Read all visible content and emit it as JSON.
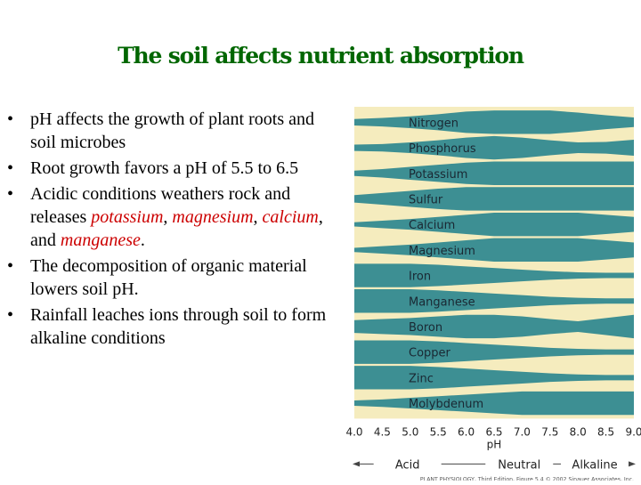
{
  "title": "The soil affects nutrient absorption",
  "bullets": [
    {
      "text": "pH affects the growth of plant roots and soil microbes"
    },
    {
      "text": "Root growth favors a pH of 5.5 to 6.5"
    },
    {
      "pre": "Acidic conditions weathers rock and releases ",
      "r1": "potassium",
      "s1": ", ",
      "r2": "magnesium",
      "s2": ", ",
      "r3": "calcium",
      "s3": ", and ",
      "r4": "manganese",
      "post": "."
    },
    {
      "text": "The decomposition of organic material lowers soil pH."
    },
    {
      "text": "Rainfall leaches ions through soil to form alkaline conditions"
    }
  ],
  "bullet_glyph": "•",
  "chart_data": {
    "type": "area",
    "xlabel": "pH",
    "x_ticks": [
      "4.0",
      "4.5",
      "5.0",
      "5.5",
      "6.0",
      "6.5",
      "7.0",
      "7.5",
      "8.0",
      "8.5",
      "9.0"
    ],
    "xlim": [
      4.0,
      9.0
    ],
    "scale_labels": {
      "acid": "Acid",
      "neutral": "Neutral",
      "alkaline": "Alkaline"
    },
    "credit": "PLANT PHYSIOLOGY, Third Edition, Figure 5.4 © 2002 Sinauer Associates, Inc.",
    "colors": {
      "band": "#3d8f93",
      "background": "#f5ecbe",
      "text": "#1a2833"
    },
    "nutrients": [
      {
        "name": "Nitrogen",
        "availability": [
          0.2,
          0.3,
          0.45,
          0.65,
          0.9,
          1.0,
          1.0,
          1.0,
          0.8,
          0.55,
          0.35
        ]
      },
      {
        "name": "Phosphorus",
        "availability": [
          0.2,
          0.25,
          0.4,
          0.6,
          0.85,
          1.0,
          0.85,
          0.6,
          0.4,
          0.45,
          0.65
        ]
      },
      {
        "name": "Potassium",
        "availability": [
          0.15,
          0.3,
          0.5,
          0.7,
          0.9,
          1.0,
          1.0,
          1.0,
          1.0,
          1.0,
          1.0
        ]
      },
      {
        "name": "Sulfur",
        "availability": [
          0.25,
          0.45,
          0.65,
          0.85,
          1.0,
          1.0,
          1.0,
          1.0,
          1.0,
          1.0,
          1.0
        ]
      },
      {
        "name": "Calcium",
        "availability": [
          0.1,
          0.25,
          0.4,
          0.6,
          0.8,
          1.0,
          1.0,
          1.0,
          1.0,
          0.8,
          0.6
        ]
      },
      {
        "name": "Magnesium",
        "availability": [
          0.1,
          0.25,
          0.4,
          0.6,
          0.8,
          1.0,
          1.0,
          1.0,
          1.0,
          0.8,
          0.6
        ]
      },
      {
        "name": "Iron",
        "availability": [
          1.0,
          1.0,
          1.0,
          0.9,
          0.75,
          0.6,
          0.45,
          0.3,
          0.2,
          0.15,
          0.15
        ]
      },
      {
        "name": "Manganese",
        "availability": [
          1.0,
          1.0,
          1.0,
          0.9,
          0.75,
          0.6,
          0.45,
          0.3,
          0.2,
          0.15,
          0.15
        ]
      },
      {
        "name": "Boron",
        "availability": [
          0.5,
          0.6,
          0.7,
          0.85,
          1.0,
          1.0,
          0.85,
          0.6,
          0.4,
          0.7,
          1.0
        ]
      },
      {
        "name": "Copper",
        "availability": [
          1.0,
          1.0,
          1.0,
          0.9,
          0.75,
          0.6,
          0.45,
          0.3,
          0.2,
          0.15,
          0.15
        ]
      },
      {
        "name": "Zinc",
        "availability": [
          1.0,
          1.0,
          1.0,
          0.9,
          0.75,
          0.6,
          0.45,
          0.3,
          0.2,
          0.15,
          0.15
        ]
      },
      {
        "name": "Molybdenum",
        "availability": [
          0.15,
          0.25,
          0.4,
          0.55,
          0.7,
          0.85,
          1.0,
          1.0,
          1.0,
          1.0,
          1.0
        ]
      }
    ]
  }
}
